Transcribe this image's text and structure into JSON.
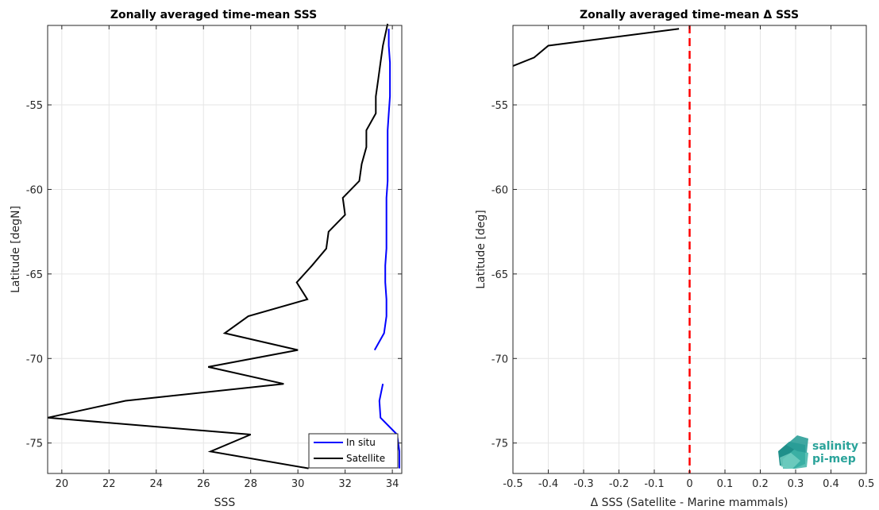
{
  "chart_data": [
    {
      "type": "line",
      "title": "Zonally averaged time-mean SSS",
      "xlabel": "SSS",
      "ylabel": "Latitude [degN]",
      "xlim": [
        19.4,
        34.4
      ],
      "ylim": [
        -76.8,
        -50.3
      ],
      "xticks": [
        20,
        22,
        24,
        26,
        28,
        30,
        32,
        34
      ],
      "yticks": [
        -75,
        -70,
        -65,
        -60,
        -55
      ],
      "grid": true,
      "legend_position": "bottom-right",
      "series": [
        {
          "name": "In situ",
          "color": "#0000ff",
          "segments": [
            [
              [
                33.85,
                -50.5
              ],
              [
                33.85,
                -51.5
              ],
              [
                33.9,
                -52.5
              ],
              [
                33.9,
                -53.5
              ],
              [
                33.9,
                -54.5
              ],
              [
                33.85,
                -55.5
              ],
              [
                33.8,
                -56.5
              ],
              [
                33.8,
                -57.5
              ],
              [
                33.8,
                -58.5
              ],
              [
                33.8,
                -59.5
              ],
              [
                33.75,
                -60.5
              ],
              [
                33.75,
                -61.5
              ],
              [
                33.75,
                -62.5
              ],
              [
                33.75,
                -63.5
              ],
              [
                33.7,
                -64.5
              ],
              [
                33.7,
                -65.5
              ],
              [
                33.75,
                -66.5
              ],
              [
                33.75,
                -67.5
              ],
              [
                33.65,
                -68.5
              ],
              [
                33.25,
                -69.5
              ]
            ],
            [
              [
                33.6,
                -71.5
              ],
              [
                33.45,
                -72.5
              ],
              [
                33.5,
                -73.5
              ],
              [
                34.2,
                -74.5
              ],
              [
                34.3,
                -75.5
              ],
              [
                34.3,
                -76.5
              ]
            ]
          ]
        },
        {
          "name": "Satellite",
          "color": "#000000",
          "segments": [
            [
              [
                33.8,
                -50.2
              ],
              [
                33.6,
                -51.5
              ],
              [
                33.5,
                -52.5
              ],
              [
                33.4,
                -53.5
              ],
              [
                33.3,
                -54.5
              ],
              [
                33.3,
                -55.5
              ],
              [
                32.9,
                -56.5
              ],
              [
                32.9,
                -57.5
              ],
              [
                32.7,
                -58.5
              ],
              [
                32.6,
                -59.5
              ],
              [
                31.9,
                -60.5
              ],
              [
                32.0,
                -61.5
              ],
              [
                31.3,
                -62.5
              ],
              [
                31.2,
                -63.5
              ],
              [
                30.6,
                -64.5
              ],
              [
                29.95,
                -65.5
              ],
              [
                30.4,
                -66.5
              ],
              [
                27.9,
                -67.5
              ],
              [
                26.9,
                -68.5
              ],
              [
                30.0,
                -69.5
              ],
              [
                26.2,
                -70.5
              ],
              [
                29.4,
                -71.5
              ],
              [
                22.7,
                -72.5
              ],
              [
                19.4,
                -73.5
              ],
              [
                28.0,
                -74.5
              ],
              [
                26.3,
                -75.5
              ],
              [
                30.45,
                -76.5
              ]
            ]
          ]
        }
      ]
    },
    {
      "type": "line",
      "title": "Zonally averaged time-mean Δ SSS",
      "xlabel": "Δ SSS (Satellite - Marine mammals)",
      "ylabel": "Latitude [deg]",
      "xlim": [
        -0.5,
        0.5
      ],
      "ylim": [
        -76.8,
        -50.3
      ],
      "xticks": [
        -0.5,
        -0.4,
        -0.3,
        -0.2,
        -0.1,
        0,
        0.1,
        0.2,
        0.3,
        0.4,
        0.5
      ],
      "yticks": [
        -75,
        -70,
        -65,
        -60,
        -55
      ],
      "grid": true,
      "reference_line": {
        "x": 0,
        "color": "#ff0000",
        "style": "dashed"
      },
      "series": [
        {
          "color": "#000000",
          "segments": [
            [
              [
                -0.03,
                -50.5
              ],
              [
                -0.4,
                -51.5
              ],
              [
                -0.44,
                -52.2
              ],
              [
                -0.5,
                -52.7
              ]
            ]
          ]
        }
      ]
    }
  ],
  "logo": {
    "line1": "salinity",
    "line2": "pi-mep"
  }
}
